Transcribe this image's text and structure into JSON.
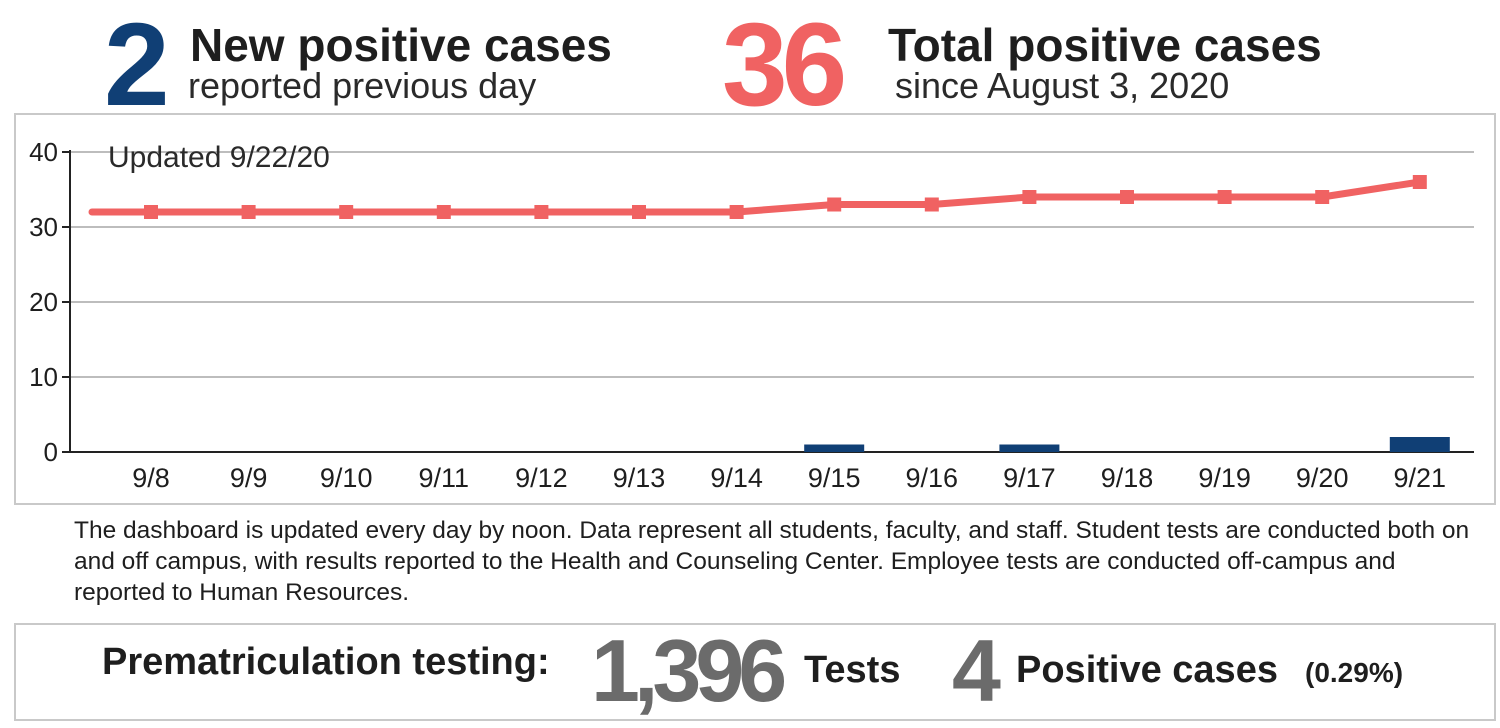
{
  "header": {
    "new_cases": {
      "number": "2",
      "title": "New positive cases",
      "subtitle": "reported previous day"
    },
    "total_cases": {
      "number": "36",
      "title": "Total positive cases",
      "subtitle": "since August 3, 2020"
    }
  },
  "colors": {
    "new_blue": "#103f75",
    "total_red": "#f06262",
    "gray_number": "#6b6b6b",
    "grid": "#bdbdbd"
  },
  "chart_data": {
    "type": "bar",
    "annotation": "Updated 9/22/20",
    "categories": [
      "9/8",
      "9/9",
      "9/10",
      "9/11",
      "9/12",
      "9/13",
      "9/14",
      "9/15",
      "9/16",
      "9/17",
      "9/18",
      "9/19",
      "9/20",
      "9/21"
    ],
    "series": [
      {
        "type": "bar",
        "values": [
          0,
          0,
          0,
          0,
          0,
          0,
          0,
          1,
          0,
          1,
          0,
          0,
          0,
          2
        ],
        "color": "#103f75"
      },
      {
        "type": "line",
        "values": [
          32,
          32,
          32,
          32,
          32,
          32,
          32,
          33,
          33,
          34,
          34,
          34,
          34,
          36
        ],
        "color": "#f06262"
      }
    ],
    "line_start_value": 32,
    "yticks": [
      0,
      10,
      20,
      30,
      40
    ],
    "ylim": [
      0,
      40
    ],
    "grid": true,
    "legend": "none"
  },
  "note": "The dashboard is updated every day by noon. Data represent all students, faculty, and staff. Student tests are conducted both on and off campus, with results reported to the Health and Counseling Center. Employee tests are conducted off-campus and reported to Human Resources.",
  "prematriculation": {
    "label": "Prematriculation testing:",
    "tests_number": "1,396",
    "tests_label": "Tests",
    "positive_number": "4",
    "positive_label": "Positive cases",
    "positive_percent": "(0.29%)"
  }
}
